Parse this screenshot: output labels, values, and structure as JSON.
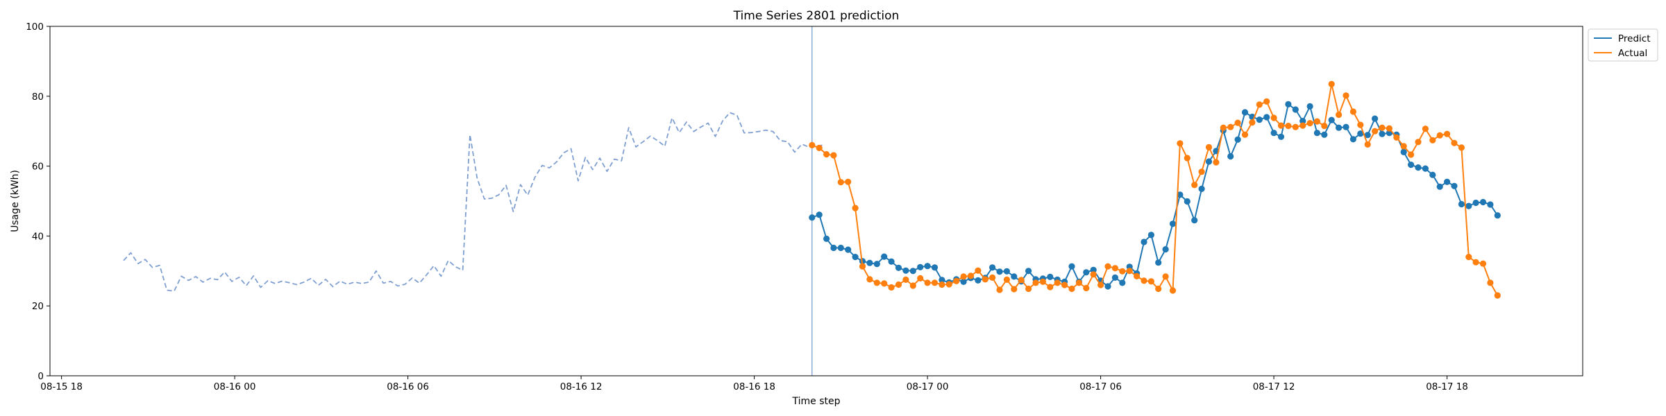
{
  "chart_data": {
    "type": "line",
    "title": "Time Series 2801 prediction",
    "xlabel": "Time step",
    "ylabel": "Usage (kWh)",
    "ylim": [
      0,
      100
    ],
    "yticks": [
      0,
      20,
      40,
      60,
      80,
      100
    ],
    "xticks": [
      {
        "t": 0,
        "label": "08-15 18"
      },
      {
        "t": 6,
        "label": "08-16 00"
      },
      {
        "t": 12,
        "label": "08-16 06"
      },
      {
        "t": 18,
        "label": "08-16 12"
      },
      {
        "t": 24,
        "label": "08-16 18"
      },
      {
        "t": 30,
        "label": "08-17 00"
      },
      {
        "t": 36,
        "label": "08-17 06"
      },
      {
        "t": 42,
        "label": "08-17 12"
      },
      {
        "t": 48,
        "label": "08-17 18"
      }
    ],
    "x_unit": "hours since 08-15 18:00",
    "xlim": [
      -0.4,
      52.7
    ],
    "grid": false,
    "legend_position": "top-right outside",
    "prediction_start": 26,
    "series": [
      {
        "name": "history",
        "color": "#7f9fd0",
        "style": "dashed",
        "markers": false,
        "start": 2.15,
        "step": 0.25,
        "values": [
          33.0,
          35.2,
          32.1,
          33.3,
          31.0,
          31.6,
          24.5,
          24.2,
          28.5,
          27.3,
          28.4,
          26.8,
          27.9,
          27.5,
          29.7,
          27.0,
          28.2,
          25.8,
          28.6,
          25.3,
          27.2,
          26.4,
          27.1,
          26.6,
          26.1,
          26.8,
          27.9,
          25.9,
          27.6,
          25.5,
          27.1,
          26.2,
          26.8,
          26.4,
          26.8,
          30.0,
          26.5,
          27.0,
          25.7,
          26.2,
          28.0,
          26.5,
          28.9,
          31.5,
          28.5,
          33.0,
          31.2,
          30.2,
          69.0,
          56.5,
          50.6,
          50.8,
          51.8,
          54.5,
          47.0,
          54.7,
          51.7,
          56.8,
          60.2,
          59.5,
          61.2,
          63.8,
          65.0,
          55.8,
          62.5,
          59.0,
          62.3,
          58.5,
          62.0,
          61.5,
          71.0,
          65.5,
          67.0,
          68.6,
          67.3,
          65.7,
          73.8,
          69.6,
          72.6,
          69.9,
          71.2,
          72.3,
          68.5,
          72.9,
          75.3,
          74.6,
          69.5,
          69.6,
          69.9,
          70.3,
          69.9,
          67.3,
          67.0,
          64.0,
          66.3,
          65.4,
          65.8,
          66.0
        ]
      },
      {
        "name": "Predict",
        "color": "#1f77b4",
        "style": "solid",
        "markers": true,
        "start": 26.0,
        "step": 0.25,
        "values": [
          45.3,
          46.1,
          39.2,
          36.6,
          36.6,
          36.1,
          34.0,
          32.8,
          32.3,
          32.0,
          34.1,
          32.7,
          30.9,
          30.1,
          30.0,
          31.1,
          31.4,
          31.0,
          27.4,
          26.7,
          27.6,
          26.9,
          28.0,
          27.3,
          28.0,
          31.0,
          29.8,
          29.9,
          28.4,
          27.0,
          30.0,
          27.6,
          27.8,
          28.3,
          27.5,
          26.9,
          31.3,
          26.9,
          29.6,
          30.3,
          27.2,
          25.6,
          28.1,
          26.6,
          31.2,
          29.3,
          38.3,
          40.3,
          32.4,
          36.2,
          43.5,
          51.8,
          49.9,
          44.5,
          53.5,
          61.3,
          64.3,
          70.2,
          62.8,
          67.6,
          75.4,
          74.1,
          73.3,
          74.0,
          69.5,
          68.4,
          77.7,
          76.2,
          72.9,
          77.1,
          69.5,
          69.0,
          73.2,
          71.0,
          71.2,
          67.7,
          69.3,
          68.9,
          73.6,
          69.2,
          69.5,
          69.0,
          64.0,
          60.4,
          59.6,
          59.3,
          57.5,
          54.1,
          55.5,
          54.3,
          49.1,
          48.6,
          49.5,
          49.7,
          49.0,
          45.9
        ]
      },
      {
        "name": "Actual",
        "color": "#ff7f0e",
        "style": "solid",
        "markers": true,
        "start": 26.0,
        "step": 0.25,
        "values": [
          66.0,
          65.2,
          63.4,
          63.1,
          55.4,
          55.5,
          48.0,
          31.3,
          27.6,
          26.6,
          26.4,
          25.3,
          26.1,
          27.5,
          25.8,
          27.9,
          26.6,
          26.6,
          26.1,
          26.2,
          27.1,
          28.4,
          28.6,
          30.1,
          27.6,
          28.1,
          24.6,
          27.5,
          24.8,
          27.4,
          24.9,
          26.6,
          26.9,
          25.4,
          26.6,
          26.0,
          24.9,
          26.6,
          25.1,
          29.0,
          26.0,
          31.3,
          30.8,
          29.9,
          30.0,
          28.5,
          27.2,
          27.0,
          24.9,
          28.4,
          24.4,
          66.5,
          62.3,
          54.6,
          58.4,
          65.4,
          61.1,
          71.0,
          71.2,
          72.4,
          69.0,
          72.5,
          77.6,
          78.5,
          73.8,
          71.6,
          71.5,
          71.2,
          71.6,
          72.3,
          72.8,
          71.5,
          83.5,
          74.7,
          80.2,
          75.6,
          71.8,
          66.2,
          70.0,
          71.0,
          70.8,
          68.2,
          65.7,
          63.3,
          66.9,
          70.7,
          67.4,
          68.8,
          69.2,
          66.6,
          65.3,
          34.0,
          32.5,
          32.1,
          26.6,
          23.0
        ]
      }
    ]
  },
  "legend": {
    "items": [
      {
        "label": "Predict",
        "color": "#1f77b4"
      },
      {
        "label": "Actual",
        "color": "#ff7f0e"
      }
    ]
  }
}
